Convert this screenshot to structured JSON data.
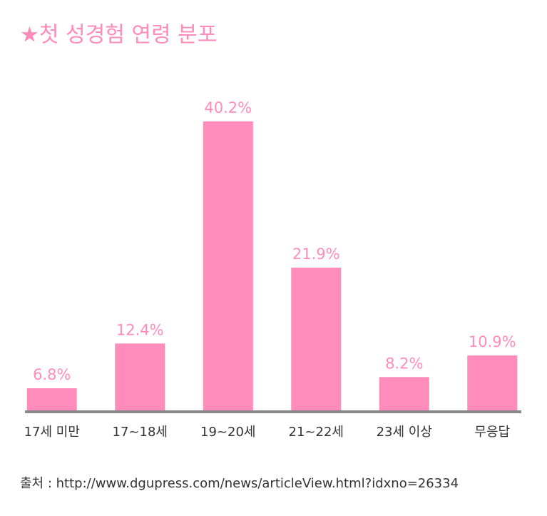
{
  "chart_data": {
    "type": "bar",
    "title": "★첫 성경험 연령 분포",
    "categories": [
      "17세 미만",
      "17~18세",
      "19~20세",
      "21~22세",
      "23세 이상",
      "무응답"
    ],
    "values": [
      6.8,
      12.4,
      40.2,
      21.9,
      8.2,
      10.9
    ],
    "value_labels": [
      "6.8%",
      "12.4%",
      "40.2%",
      "21.9%",
      "8.2%",
      "10.9%"
    ],
    "color": "#ff8cba",
    "ylim": [
      3.85,
      42
    ],
    "source": "출처 : http://www.dgupress.com/news/articleView.html?idxno=26334"
  }
}
